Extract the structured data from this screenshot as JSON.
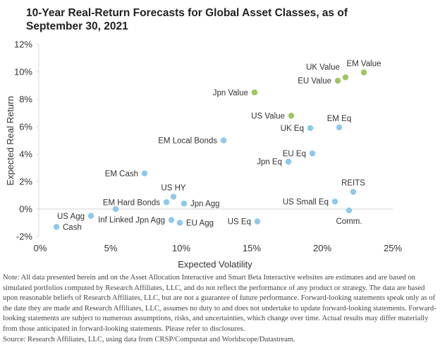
{
  "chart_data": {
    "type": "scatter",
    "title": "10-Year Real-Return Forecasts for Global Asset Classes, as of September 30, 2021",
    "xlabel": "Expected Volatility",
    "ylabel": "Expected Real Return",
    "xlim": [
      0,
      25
    ],
    "ylim": [
      -2,
      12
    ],
    "x_ticks": [
      "0%",
      "5%",
      "10%",
      "15%",
      "20%",
      "25%"
    ],
    "y_ticks": [
      "-2%",
      "0%",
      "2%",
      "4%",
      "6%",
      "8%",
      "10%",
      "12%"
    ],
    "grid": false,
    "colors": {
      "standard": "#8ec8ec",
      "value": "#9dc75a"
    },
    "points": [
      {
        "label": "Cash",
        "x": 1.15,
        "y": -1.3,
        "group": "standard",
        "label_pos": "right"
      },
      {
        "label": "US Agg",
        "x": 3.6,
        "y": -0.5,
        "group": "standard",
        "label_pos": "left"
      },
      {
        "label": "Inf Linked",
        "x": 5.35,
        "y": 0.0,
        "group": "standard",
        "label_pos": "below"
      },
      {
        "label": "EM Hard Bonds",
        "x": 8.95,
        "y": 0.5,
        "group": "standard",
        "label_pos": "left"
      },
      {
        "label": "US HY",
        "x": 9.45,
        "y": 0.9,
        "group": "standard",
        "label_pos": "above"
      },
      {
        "label": "Jpn Agg",
        "x": 10.2,
        "y": 0.4,
        "group": "standard",
        "label_pos": "right"
      },
      {
        "label": "Jpn Agg",
        "x": 9.3,
        "y": -0.8,
        "group": "standard",
        "label_pos": "left"
      },
      {
        "label": "EU Agg",
        "x": 9.9,
        "y": -1.0,
        "group": "standard",
        "label_pos": "right"
      },
      {
        "label": "EM Cash",
        "x": 7.4,
        "y": 2.6,
        "group": "standard",
        "label_pos": "left"
      },
      {
        "label": "EM Local Bonds",
        "x": 13.0,
        "y": 5.0,
        "group": "standard",
        "label_pos": "left"
      },
      {
        "label": "US Eq",
        "x": 15.4,
        "y": -0.9,
        "group": "standard",
        "label_pos": "left"
      },
      {
        "label": "Jpn Eq",
        "x": 17.6,
        "y": 3.45,
        "group": "standard",
        "label_pos": "left"
      },
      {
        "label": "EU Eq",
        "x": 19.3,
        "y": 4.05,
        "group": "standard",
        "label_pos": "left"
      },
      {
        "label": "UK Eq",
        "x": 19.15,
        "y": 5.9,
        "group": "standard",
        "label_pos": "left"
      },
      {
        "label": "EM Eq",
        "x": 21.2,
        "y": 5.95,
        "group": "standard",
        "label_pos": "above"
      },
      {
        "label": "US Small Eq",
        "x": 20.9,
        "y": 0.55,
        "group": "standard",
        "label_pos": "left"
      },
      {
        "label": "REITS",
        "x": 22.2,
        "y": 1.25,
        "group": "standard",
        "label_pos": "above"
      },
      {
        "label": "Comm.",
        "x": 21.9,
        "y": -0.1,
        "group": "standard",
        "label_pos": "below"
      },
      {
        "label": "Jpn Value",
        "x": 15.2,
        "y": 8.5,
        "group": "value",
        "label_pos": "left"
      },
      {
        "label": "US Value",
        "x": 17.8,
        "y": 6.8,
        "group": "value",
        "label_pos": "left"
      },
      {
        "label": "EU Value",
        "x": 21.1,
        "y": 9.35,
        "group": "value",
        "label_pos": "left"
      },
      {
        "label": "UK Value",
        "x": 21.65,
        "y": 9.6,
        "group": "value",
        "label_pos": "above-left"
      },
      {
        "label": "EM Value",
        "x": 22.95,
        "y": 9.95,
        "group": "value",
        "label_pos": "above"
      }
    ]
  },
  "note": "Note: All data presented herein and on the Asset Allocation Interactive and Smart Beta Interactive websites are estimates and are based on simulated portfolios computed by Research Affiliates, LLC, and do not reflect the performance of any product or strategy. The data are based upon reasonable beliefs of Research Affiliates, LLC, but are not a guarantee of future performance. Forward-looking statements speak only as of the date they are made and Research Affiliates, LLC, assumes no duty to and does not undertake to update forward-looking statements. Forward-looking statements are subject to numerous assumptions, risks, and uncertainties, which change over time. Actual results may differ materially from those anticipated in forward-looking statements. Please refer to disclosures.",
  "source": "Source: Research Affiliates, LLC, using data from CRSP/Compustat and Worldscope/Datastream."
}
